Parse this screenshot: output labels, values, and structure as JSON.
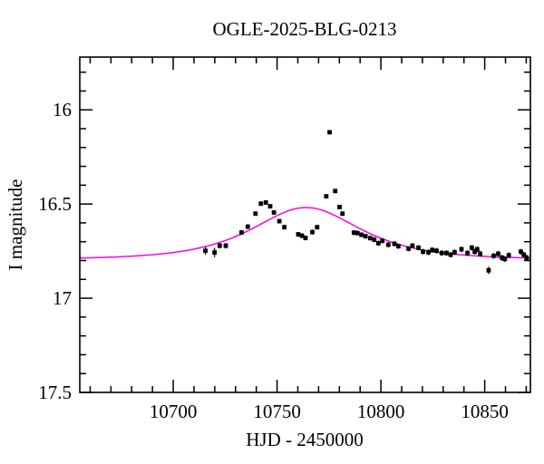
{
  "chart_data": {
    "type": "scatter",
    "title": "OGLE-2025-BLG-0213",
    "xlabel": "HJD - 2450000",
    "ylabel": "I magnitude",
    "xlim": [
      10655,
      10872
    ],
    "ylim_mag": [
      17.5,
      15.72
    ],
    "x_major_ticks": [
      10700,
      10750,
      10800,
      10850
    ],
    "x_minor_step": 10,
    "x_major_every": 50,
    "y_major_ticks": [
      16,
      16.5,
      17,
      17.5
    ],
    "y_minor_step": 0.1,
    "grid": false,
    "legend_position": "none",
    "colors": {
      "background": "#ffffff",
      "frame": "#000000",
      "points": "#000000",
      "model_curve": "#ff00e6"
    },
    "model_curve": {
      "model": "paczynski-single-lens",
      "t0": 10764,
      "tE": 30,
      "u0": 1.08,
      "baseline_mag": 16.795,
      "peak_mag": 16.52
    },
    "points": [
      [
        10715.5,
        16.748,
        0.022
      ],
      [
        10719.9,
        16.757,
        0.025
      ],
      [
        10722.4,
        16.721,
        0.015
      ],
      [
        10725.3,
        16.721,
        0.015
      ],
      [
        10732.9,
        16.651,
        0.013
      ],
      [
        10735.9,
        16.62,
        0.013
      ],
      [
        10739.6,
        16.551,
        0.012
      ],
      [
        10742.2,
        16.498,
        0.012
      ],
      [
        10744.6,
        16.492,
        0.012
      ],
      [
        10746.7,
        16.512,
        0.012
      ],
      [
        10748.5,
        16.545,
        0.012
      ],
      [
        10751.1,
        16.591,
        0.012
      ],
      [
        10753.5,
        16.623,
        0.013
      ],
      [
        10760.2,
        16.661,
        0.013
      ],
      [
        10762.0,
        16.668,
        0.013
      ],
      [
        10763.7,
        16.68,
        0.013
      ],
      [
        10767.0,
        16.649,
        0.013
      ],
      [
        10769.3,
        16.623,
        0.013
      ],
      [
        10773.7,
        16.459,
        0.011
      ],
      [
        10775.3,
        16.119,
        0.01
      ],
      [
        10778.0,
        16.431,
        0.011
      ],
      [
        10780.1,
        16.516,
        0.012
      ],
      [
        10781.5,
        16.551,
        0.012
      ],
      [
        10787.0,
        16.652,
        0.013
      ],
      [
        10788.7,
        16.654,
        0.013
      ],
      [
        10790.6,
        16.663,
        0.013
      ],
      [
        10792.6,
        16.671,
        0.013
      ],
      [
        10794.9,
        16.681,
        0.013
      ],
      [
        10796.8,
        16.689,
        0.014
      ],
      [
        10798.8,
        16.708,
        0.014
      ],
      [
        10800.7,
        16.695,
        0.014
      ],
      [
        10803.6,
        16.716,
        0.014
      ],
      [
        10806.5,
        16.711,
        0.014
      ],
      [
        10808.4,
        16.724,
        0.014
      ],
      [
        10813.3,
        16.737,
        0.014
      ],
      [
        10815.2,
        16.721,
        0.014
      ],
      [
        10818.1,
        16.732,
        0.014
      ],
      [
        10820.3,
        16.753,
        0.015
      ],
      [
        10822.9,
        16.756,
        0.015
      ],
      [
        10824.7,
        16.744,
        0.015
      ],
      [
        10826.8,
        16.748,
        0.015
      ],
      [
        10829.3,
        16.76,
        0.015
      ],
      [
        10831.6,
        16.76,
        0.015
      ],
      [
        10833.6,
        16.769,
        0.015
      ],
      [
        10835.5,
        16.756,
        0.015
      ],
      [
        10838.8,
        16.74,
        0.015
      ],
      [
        10841.7,
        16.76,
        0.015
      ],
      [
        10843.8,
        16.732,
        0.015
      ],
      [
        10845.2,
        16.753,
        0.015
      ],
      [
        10846.4,
        16.74,
        0.015
      ],
      [
        10847.8,
        16.764,
        0.015
      ],
      [
        10851.9,
        16.852,
        0.02
      ],
      [
        10854.3,
        16.775,
        0.015
      ],
      [
        10856.5,
        16.764,
        0.015
      ],
      [
        10858.3,
        16.785,
        0.016
      ],
      [
        10859.7,
        16.792,
        0.016
      ],
      [
        10861.6,
        16.772,
        0.015
      ],
      [
        10867.4,
        16.753,
        0.015
      ],
      [
        10868.8,
        16.769,
        0.015
      ],
      [
        10870.2,
        16.785,
        0.016
      ]
    ]
  }
}
